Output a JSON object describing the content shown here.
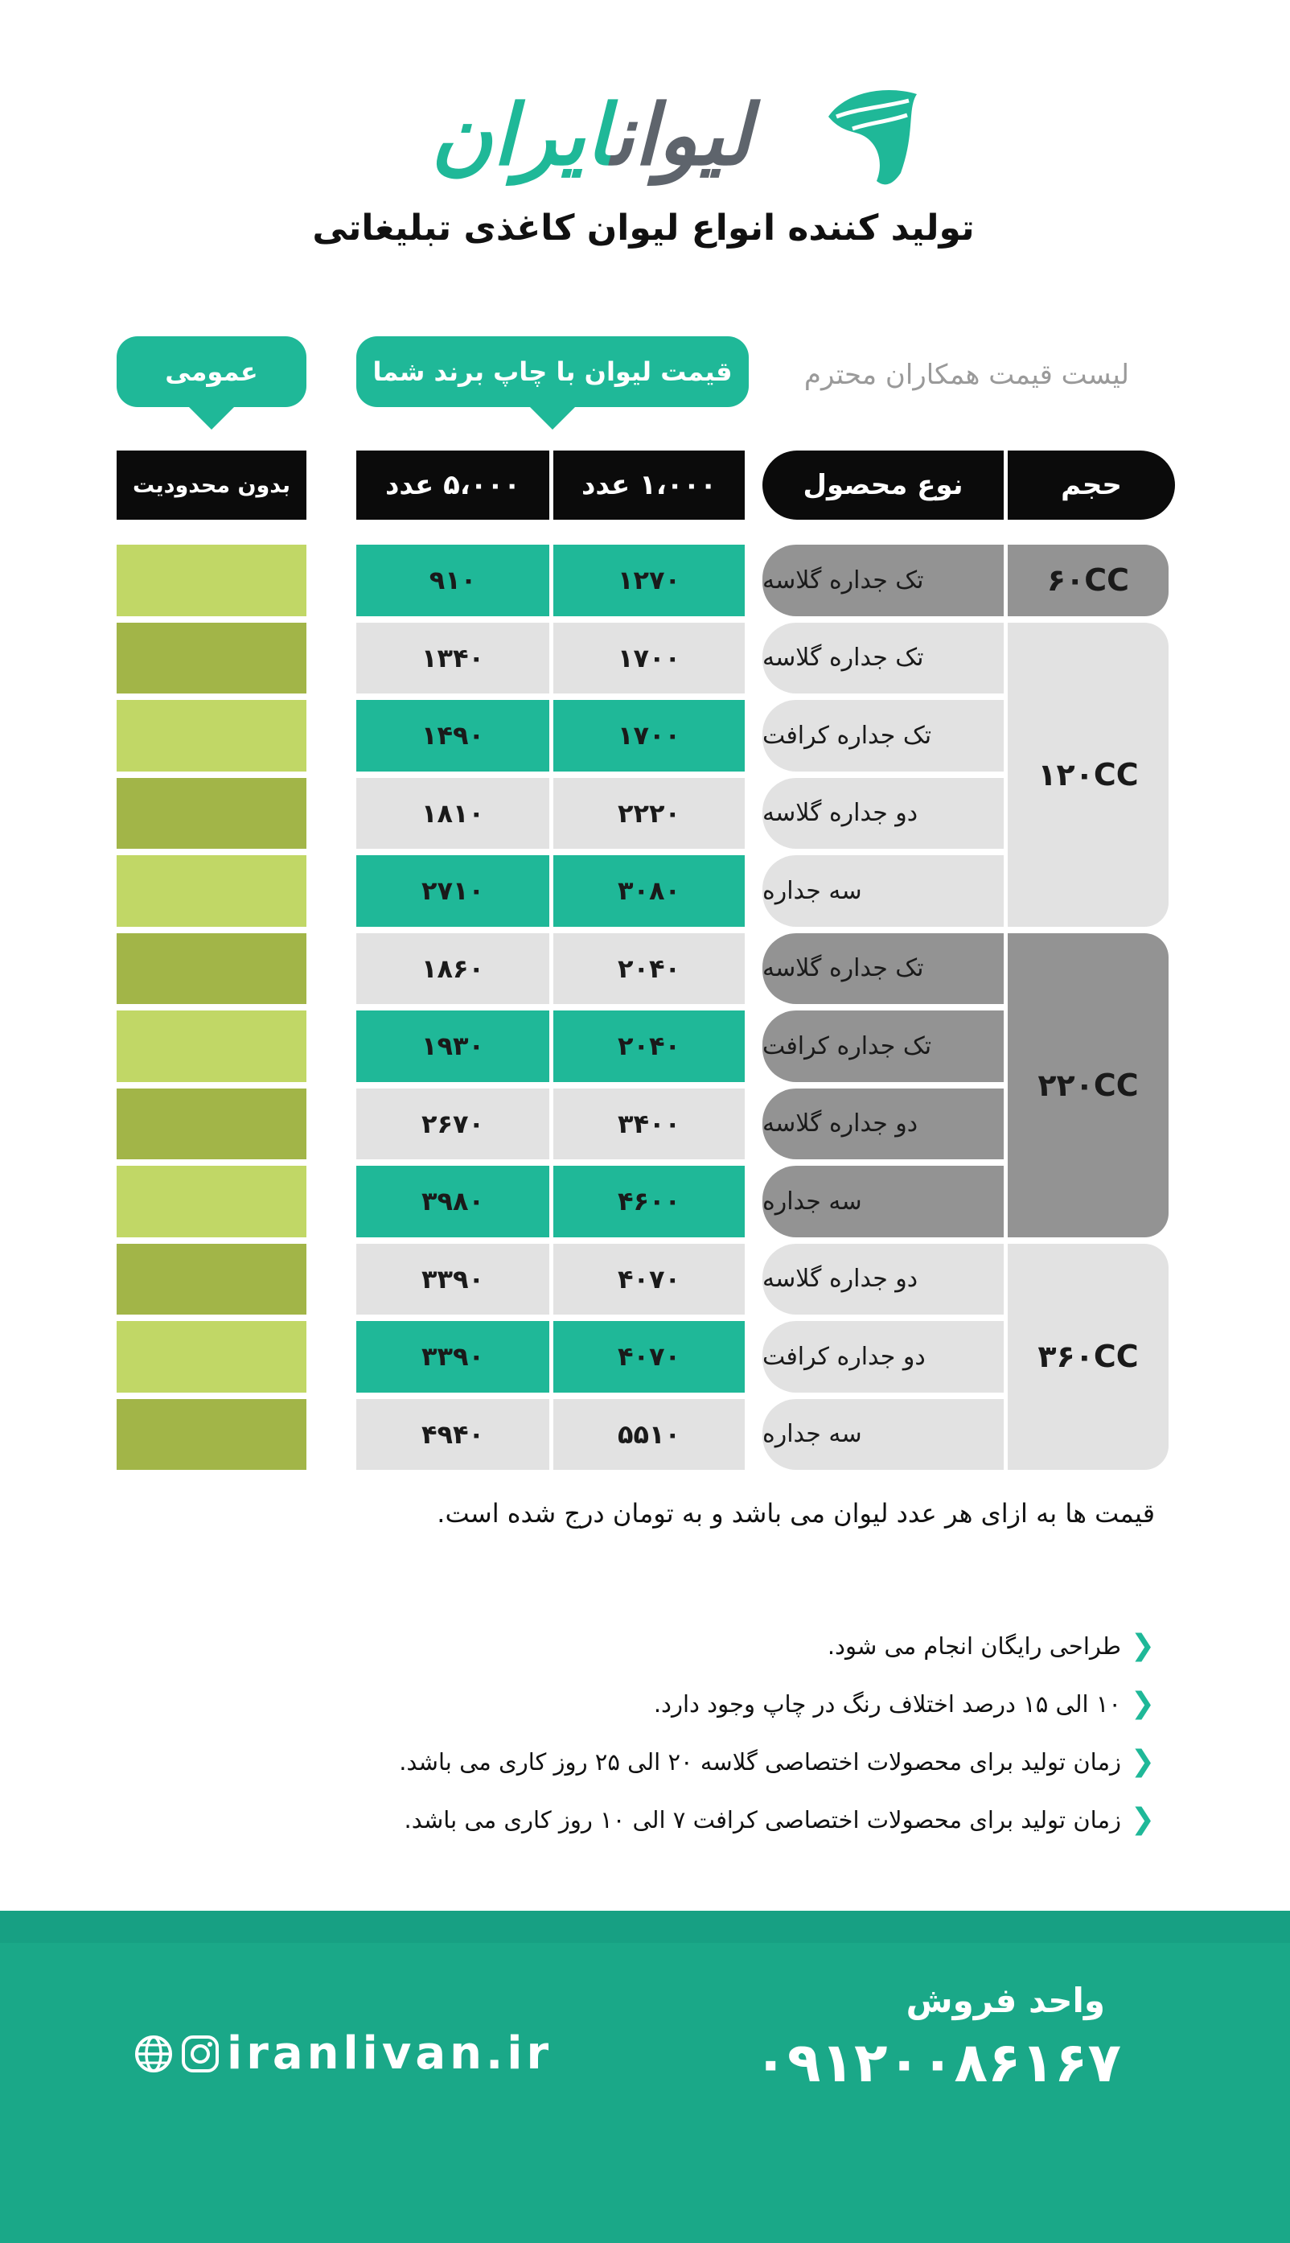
{
  "brand": {
    "part1": "لیوان",
    "part2": "ایران"
  },
  "tagline": "تولید کننده انواع لیوان کاغذی تبلیغاتی",
  "caption": "لیست قیمت همکاران محترم",
  "print_group_label": "قیمت لیوان با چاپ برند شما",
  "general_group_label": "عمومی",
  "headers": {
    "size": "حجم",
    "type": "نوع محصول",
    "qty1000": "۱،۰۰۰ عدد",
    "qty5000": "۵،۰۰۰ عدد",
    "unlimited": "بدون محدودیت"
  },
  "sizes": [
    {
      "label": "۶۰CC",
      "products": [
        {
          "name": "تک جداره گلاسه",
          "p1000": "۱۲۷۰",
          "p5000": "۹۱۰"
        }
      ]
    },
    {
      "label": "۱۲۰CC",
      "products": [
        {
          "name": "تک جداره گلاسه",
          "p1000": "۱۷۰۰",
          "p5000": "۱۳۴۰"
        },
        {
          "name": "تک جداره کرافت",
          "p1000": "۱۷۰۰",
          "p5000": "۱۴۹۰"
        },
        {
          "name": "دو جداره گلاسه",
          "p1000": "۲۲۲۰",
          "p5000": "۱۸۱۰"
        },
        {
          "name": "سه جداره",
          "p1000": "۳۰۸۰",
          "p5000": "۲۷۱۰"
        }
      ]
    },
    {
      "label": "۲۲۰CC",
      "products": [
        {
          "name": "تک جداره گلاسه",
          "p1000": "۲۰۴۰",
          "p5000": "۱۸۶۰"
        },
        {
          "name": "تک جداره کرافت",
          "p1000": "۲۰۴۰",
          "p5000": "۱۹۳۰"
        },
        {
          "name": "دو جداره گلاسه",
          "p1000": "۳۴۰۰",
          "p5000": "۲۶۷۰"
        },
        {
          "name": "سه جداره",
          "p1000": "۴۶۰۰",
          "p5000": "۳۹۸۰"
        }
      ]
    },
    {
      "label": "۳۶۰CC",
      "products": [
        {
          "name": "دو جداره گلاسه",
          "p1000": "۴۰۷۰",
          "p5000": "۳۳۹۰"
        },
        {
          "name": "دو جداره کرافت",
          "p1000": "۴۰۷۰",
          "p5000": "۳۳۹۰"
        },
        {
          "name": "سه جداره",
          "p1000": "۵۵۱۰",
          "p5000": "۴۹۴۰"
        }
      ]
    }
  ],
  "note": "قیمت ها به ازای هر عدد لیوان می باشد و به تومان درج شده است.",
  "bullets": [
    "طراحی رایگان انجام می شود.",
    "۱۰ الی ۱۵ درصد اختلاف رنگ در چاپ وجود دارد.",
    "زمان تولید برای محصولات اختصاصی گلاسه ۲۰ الی ۲۵ روز کاری می باشد.",
    "زمان تولید برای محصولات اختصاصی کرافت ۷ الی ۱۰ روز کاری می باشد."
  ],
  "footer": {
    "sales_label": "واحد فروش",
    "phone": "۰۹۱۲۰۰۸۶۱۶۷",
    "website": "iranlivan.ir"
  },
  "colors": {
    "accent": "#1fb898",
    "light_gray": "#e2e2e2",
    "dark_gray": "#939393",
    "lime_light": "#c1d766",
    "lime_dark": "#a2b548"
  },
  "icons": {
    "globe": "globe-icon",
    "instagram": "instagram-icon",
    "chevron": "chevron-left-icon"
  }
}
